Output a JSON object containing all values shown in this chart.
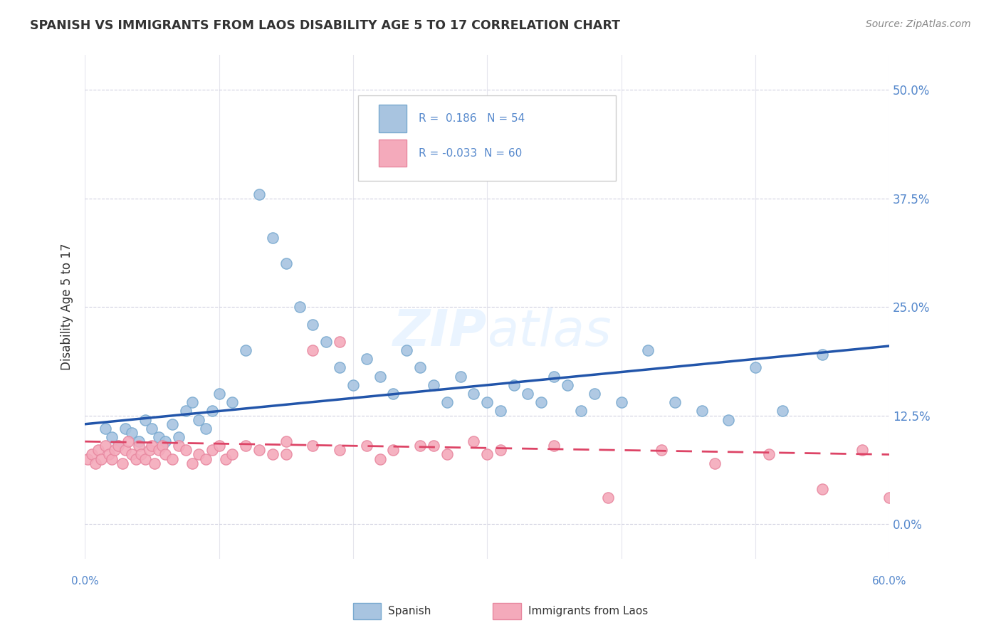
{
  "title": "SPANISH VS IMMIGRANTS FROM LAOS DISABILITY AGE 5 TO 17 CORRELATION CHART",
  "source": "Source: ZipAtlas.com",
  "ylabel": "Disability Age 5 to 17",
  "ytick_vals": [
    0.0,
    12.5,
    25.0,
    37.5,
    50.0
  ],
  "ytick_labels": [
    "0.0%",
    "12.5%",
    "25.0%",
    "37.5%",
    "50.0%"
  ],
  "xlim": [
    0.0,
    60.0
  ],
  "ylim": [
    -4.0,
    54.0
  ],
  "blue_color": "#A8C4E0",
  "pink_color": "#F4AABB",
  "blue_line_color": "#2255AA",
  "pink_line_color": "#DD4466",
  "background_color": "#FFFFFF",
  "title_color": "#333333",
  "axis_label_color": "#5588CC",
  "grid_color": "#CCCCDD",
  "legend_text_color": "#5588CC",
  "sp_x": [
    1.5,
    2.0,
    2.5,
    3.0,
    3.5,
    4.0,
    4.5,
    5.0,
    5.5,
    6.0,
    6.5,
    7.0,
    7.5,
    8.0,
    8.5,
    9.0,
    9.5,
    10.0,
    11.0,
    12.0,
    13.0,
    14.0,
    15.0,
    16.0,
    17.0,
    18.0,
    19.0,
    20.0,
    21.0,
    22.0,
    23.0,
    24.0,
    25.0,
    26.0,
    27.0,
    28.0,
    29.0,
    30.0,
    31.0,
    32.0,
    33.0,
    34.0,
    35.0,
    36.0,
    37.0,
    38.0,
    40.0,
    42.0,
    44.0,
    46.0,
    48.0,
    50.0,
    52.0,
    55.0
  ],
  "sp_y": [
    11.0,
    10.0,
    9.0,
    11.0,
    10.5,
    9.5,
    12.0,
    11.0,
    10.0,
    9.5,
    11.5,
    10.0,
    13.0,
    14.0,
    12.0,
    11.0,
    13.0,
    15.0,
    14.0,
    20.0,
    38.0,
    33.0,
    30.0,
    25.0,
    23.0,
    21.0,
    18.0,
    16.0,
    19.0,
    17.0,
    15.0,
    20.0,
    18.0,
    16.0,
    14.0,
    17.0,
    15.0,
    14.0,
    13.0,
    16.0,
    15.0,
    14.0,
    17.0,
    16.0,
    13.0,
    15.0,
    14.0,
    20.0,
    14.0,
    13.0,
    12.0,
    18.0,
    13.0,
    19.5
  ],
  "la_x": [
    0.2,
    0.5,
    0.8,
    1.0,
    1.2,
    1.5,
    1.8,
    2.0,
    2.2,
    2.5,
    2.8,
    3.0,
    3.2,
    3.5,
    3.8,
    4.0,
    4.2,
    4.5,
    4.8,
    5.0,
    5.2,
    5.5,
    5.8,
    6.0,
    6.5,
    7.0,
    7.5,
    8.0,
    8.5,
    9.0,
    9.5,
    10.0,
    10.5,
    11.0,
    12.0,
    13.0,
    14.0,
    15.0,
    17.0,
    19.0,
    21.0,
    23.0,
    25.0,
    27.0,
    29.0,
    31.0,
    35.0,
    39.0,
    43.0,
    47.0,
    51.0,
    55.0,
    58.0,
    60.0,
    15.0,
    17.0,
    19.0,
    22.0,
    26.0,
    30.0
  ],
  "la_y": [
    7.5,
    8.0,
    7.0,
    8.5,
    7.5,
    9.0,
    8.0,
    7.5,
    8.5,
    9.0,
    7.0,
    8.5,
    9.5,
    8.0,
    7.5,
    9.0,
    8.0,
    7.5,
    8.5,
    9.0,
    7.0,
    8.5,
    9.0,
    8.0,
    7.5,
    9.0,
    8.5,
    7.0,
    8.0,
    7.5,
    8.5,
    9.0,
    7.5,
    8.0,
    9.0,
    8.5,
    8.0,
    9.5,
    20.0,
    21.0,
    9.0,
    8.5,
    9.0,
    8.0,
    9.5,
    8.5,
    9.0,
    3.0,
    8.5,
    7.0,
    8.0,
    4.0,
    8.5,
    3.0,
    8.0,
    9.0,
    8.5,
    7.5,
    9.0,
    8.0
  ]
}
